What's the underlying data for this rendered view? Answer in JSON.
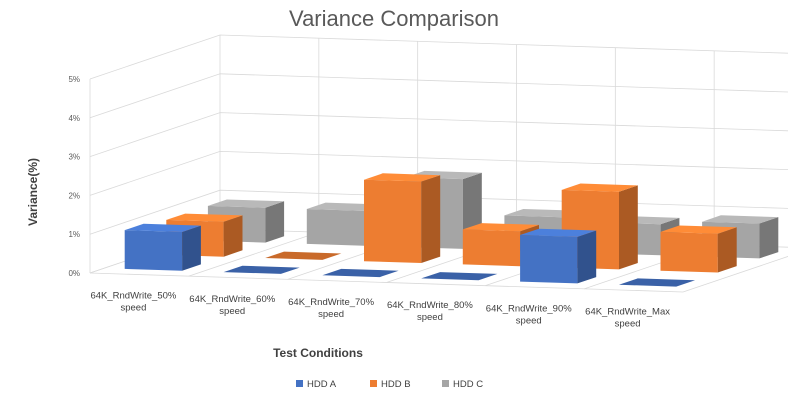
{
  "chart_data": {
    "type": "bar",
    "variant": "3d-clustered-column",
    "title": "Variance Comparison",
    "xlabel": "Test Conditions",
    "ylabel": "Variance(%)",
    "ylim": [
      0,
      5
    ],
    "yticks": [
      "0%",
      "1%",
      "2%",
      "3%",
      "4%",
      "5%"
    ],
    "categories": [
      [
        "64K_RndWrite_50%",
        "speed"
      ],
      [
        "64K_RndWrite_60%",
        "speed"
      ],
      [
        "64K_RndWrite_70%",
        "speed"
      ],
      [
        "64K_RndWrite_80%",
        "speed"
      ],
      [
        "64K_RndWrite_90%",
        "speed"
      ],
      [
        "64K_RndWrite_Max",
        "speed"
      ]
    ],
    "series": [
      {
        "name": "HDD A",
        "color": "#4472C4",
        "values": [
          1.0,
          0.0,
          0.0,
          0.0,
          1.2,
          0.0
        ]
      },
      {
        "name": "HDD B",
        "color": "#ED7D31",
        "values": [
          0.9,
          0.0,
          2.1,
          0.9,
          2.0,
          1.0
        ]
      },
      {
        "name": "HDD C",
        "color": "#A5A5A5",
        "values": [
          0.9,
          0.9,
          1.8,
          0.9,
          0.8,
          0.9
        ]
      }
    ],
    "grid": true,
    "legend": "bottom"
  }
}
